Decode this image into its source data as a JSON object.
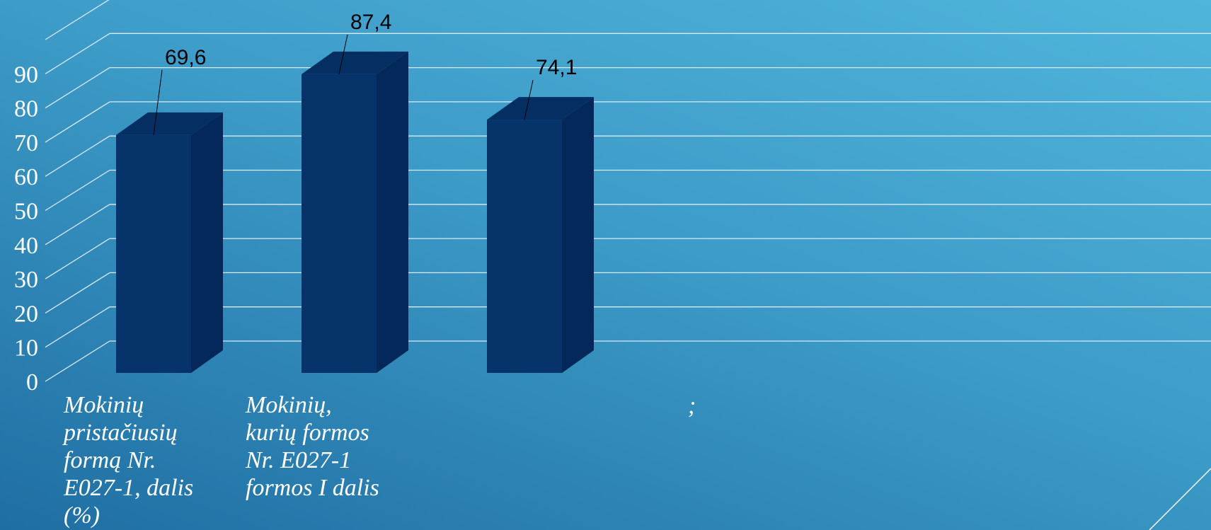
{
  "chart_data": {
    "type": "bar",
    "categories": [
      "Mokinių\npristačiusių\nformą Nr.\nE027-1, dalis\n(%)",
      "Mokinių,\nkurių formos\nNr. E027-1\nformos I dalis",
      ""
    ],
    "values": [
      69.6,
      87.4,
      74.1
    ],
    "data_labels": [
      "69,6",
      "87,4",
      "74,1"
    ],
    "yticks": [
      "0",
      "10",
      "20",
      "30",
      "40",
      "50",
      "60",
      "70",
      "80",
      "90"
    ],
    "ylim": [
      0,
      100
    ],
    "grid": true,
    "style": "3d-column",
    "annotation": ";",
    "colors": {
      "bar_front": "#06336a",
      "bar_side": "#04285a",
      "bar_top": "#052e63",
      "grid": "#dbe9f2",
      "text": "#ffffff"
    }
  }
}
